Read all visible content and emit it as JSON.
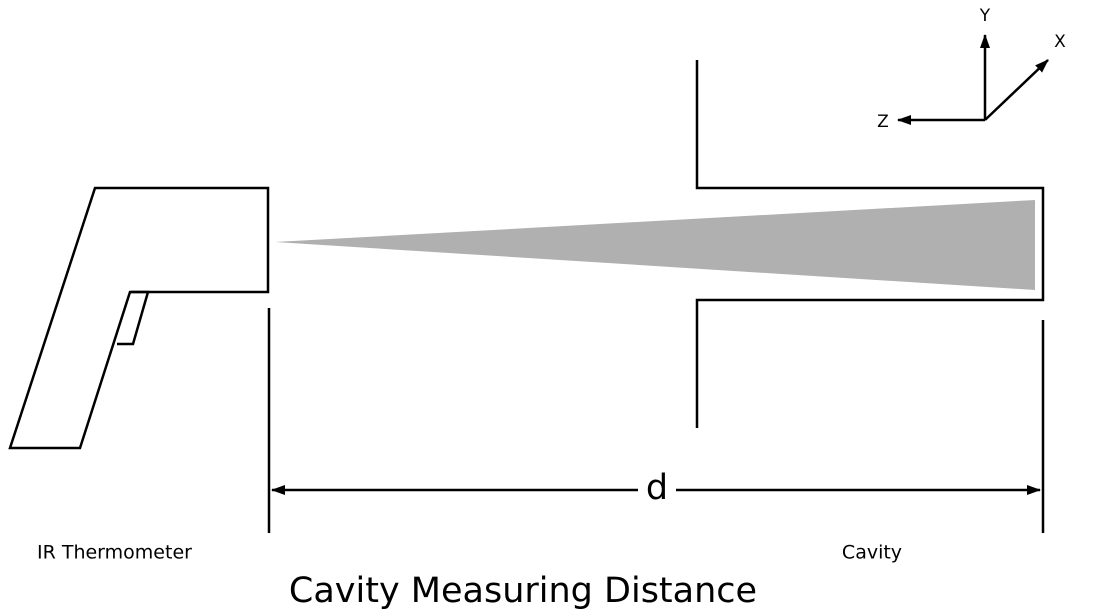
{
  "diagram": {
    "title": "Cavity Measuring Distance",
    "labels": {
      "thermometer": "IR Thermometer",
      "cavity": "Cavity",
      "distance": "d"
    },
    "axes": {
      "y": "Y",
      "x": "X",
      "z": "Z"
    }
  }
}
